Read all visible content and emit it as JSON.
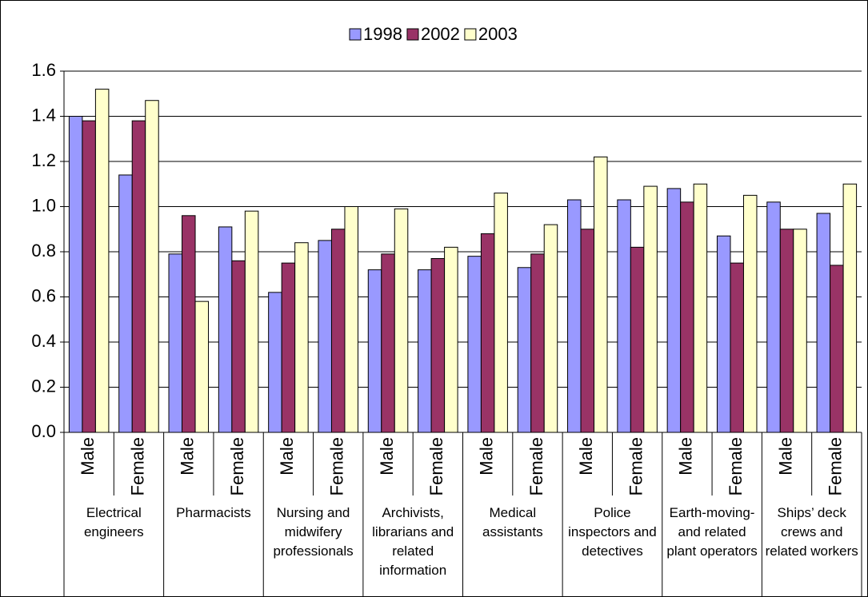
{
  "chart_data": {
    "type": "bar",
    "categories": [
      "Male",
      "Female",
      "Male",
      "Female",
      "Male",
      "Female",
      "Male",
      "Female",
      "Male",
      "Female",
      "Male",
      "Female",
      "Male",
      "Female",
      "Male",
      "Female"
    ],
    "group_labels": [
      "Electrical engineers",
      "Pharmacists",
      "Nursing and midwifery professionals",
      "Archivists, librarians and related information",
      "Medical assistants",
      "Police inspectors and detectives",
      "Earth-moving- and related plant operators",
      "Ships’ deck crews and related workers"
    ],
    "series": [
      {
        "name": "1998",
        "color": "#9999ff",
        "values": [
          1.4,
          1.14,
          0.79,
          0.91,
          0.62,
          0.85,
          0.72,
          0.72,
          0.78,
          0.73,
          1.03,
          1.03,
          1.08,
          0.87,
          1.02,
          0.97
        ]
      },
      {
        "name": "2002",
        "color": "#993366",
        "values": [
          1.38,
          1.38,
          0.96,
          0.76,
          0.75,
          0.9,
          0.79,
          0.77,
          0.88,
          0.79,
          0.9,
          0.82,
          1.02,
          0.75,
          0.9,
          0.74
        ]
      },
      {
        "name": "2003",
        "color": "#ffffcc",
        "values": [
          1.52,
          1.47,
          0.58,
          0.98,
          0.84,
          1.0,
          0.99,
          0.82,
          1.06,
          0.92,
          1.22,
          1.09,
          1.1,
          1.05,
          0.9,
          1.1
        ]
      }
    ],
    "ylim": [
      0,
      1.6
    ],
    "yticks": [
      {
        "value": 0,
        "label": "0.0"
      },
      0.2,
      0.4,
      0.6,
      0.8,
      {
        "value": 1,
        "label": "1.0"
      },
      1.2,
      1.4,
      1.6
    ],
    "grid": true,
    "legend": "top"
  }
}
